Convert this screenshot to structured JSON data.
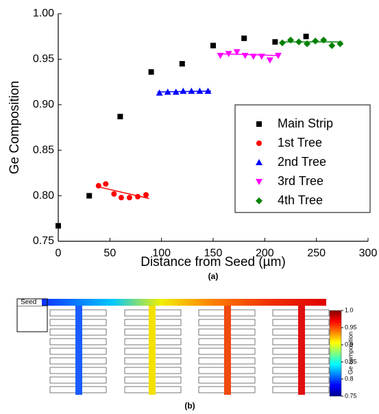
{
  "chart_data": {
    "type": "scatter",
    "xlabel": "Distance from Seed (µm)",
    "ylabel": "Ge Composition",
    "caption": "(a)",
    "xlim": [
      0,
      300
    ],
    "ylim": [
      0.75,
      1.0
    ],
    "xticks": [
      0,
      50,
      100,
      150,
      200,
      250,
      300
    ],
    "yticks": [
      0.75,
      {
        "value": 0.8,
        "label": "0.80"
      },
      0.85,
      {
        "value": 0.9,
        "label": "0.90"
      },
      0.95,
      {
        "value": 1.0,
        "label": "1.00"
      }
    ],
    "legend": "right",
    "series": [
      {
        "name": "Main Strip",
        "color": "#000000",
        "marker": "square",
        "x": [
          0,
          30,
          60,
          90,
          120,
          150,
          180,
          210,
          240
        ],
        "values": [
          0.767,
          0.8,
          0.887,
          0.936,
          0.945,
          0.965,
          0.973,
          0.969,
          0.975
        ]
      },
      {
        "name": "1st Tree",
        "color": "#ff0000",
        "marker": "circle",
        "x": [
          39,
          46,
          54,
          61,
          69,
          77,
          85
        ],
        "values": [
          0.811,
          0.813,
          0.802,
          0.798,
          0.798,
          0.799,
          0.801
        ],
        "fit": {
          "x": [
            38,
            88
          ],
          "y": [
            0.81,
            0.797
          ]
        }
      },
      {
        "name": "2nd Tree",
        "color": "#0000ff",
        "marker": "triangle-up",
        "x": [
          98,
          106,
          114,
          121,
          129,
          137,
          145
        ],
        "values": [
          0.913,
          0.914,
          0.914,
          0.915,
          0.915,
          0.915,
          0.915
        ],
        "fit": {
          "x": [
            96,
            148
          ],
          "y": [
            0.914,
            0.915
          ]
        }
      },
      {
        "name": "3rd Tree",
        "color": "#ff00ff",
        "marker": "triangle-down",
        "x": [
          157,
          165,
          173,
          181,
          189,
          197,
          205,
          213
        ],
        "values": [
          0.954,
          0.956,
          0.958,
          0.954,
          0.953,
          0.953,
          0.949,
          0.954
        ],
        "fit": {
          "x": [
            155,
            215
          ],
          "y": [
            0.956,
            0.954
          ]
        }
      },
      {
        "name": "4th Tree",
        "color": "#008000",
        "marker": "diamond",
        "x": [
          217,
          225,
          233,
          241,
          249,
          257,
          265,
          273
        ],
        "values": [
          0.968,
          0.971,
          0.969,
          0.967,
          0.97,
          0.971,
          0.965,
          0.967
        ],
        "fit": {
          "x": [
            215,
            275
          ],
          "y": [
            0.969,
            0.969
          ]
        }
      }
    ]
  },
  "diagram": {
    "seed_label": "Seed",
    "caption": "(b)",
    "colorbar_label": "Ge composition",
    "colorbar_lim": [
      0.75,
      1.0
    ],
    "colorbar_ticks": [
      {
        "value": 1.0,
        "label": "1.0"
      },
      0.95,
      0.9,
      0.85,
      0.8,
      0.75
    ]
  }
}
